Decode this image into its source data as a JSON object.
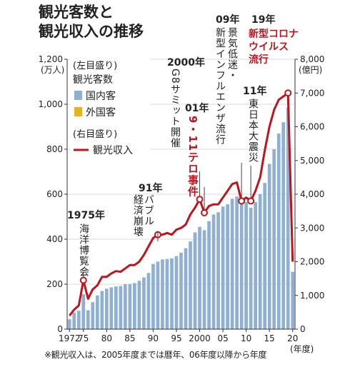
{
  "title": [
    "観光客数と",
    "観光収入の推移"
  ],
  "footnote": "※観光収入は、2005年度までは暦年、06年度以降から年度",
  "left_axis": {
    "unit": "(万人)",
    "ticks": [
      "0",
      "200",
      "400",
      "600",
      "800",
      "1,000",
      "1,200"
    ]
  },
  "right_axis": {
    "unit": "(億円)",
    "ticks": [
      "0",
      "1,000",
      "2,000",
      "3,000",
      "4,000",
      "5,000",
      "6,000",
      "7,000",
      "8,000"
    ]
  },
  "x_axis": {
    "unit": "(年度)",
    "ticks": [
      "1972",
      "75",
      "80",
      "85",
      "90",
      "95",
      "2000",
      "05",
      "10",
      "15",
      "20"
    ]
  },
  "legend": {
    "left_header": "(左目盛り)",
    "left_title": "観光客数",
    "domestic": "国内客",
    "foreign": "外国客",
    "right_header": "(右目盛り)",
    "revenue": "観光収入"
  },
  "annotations": [
    {
      "year": "1975年",
      "text": "海洋博覧会",
      "highlight": ""
    },
    {
      "year": "91年",
      "text": "バブル経済崩壊",
      "highlight": ""
    },
    {
      "year": "2000年",
      "text": "G8サミット開催",
      "highlight": ""
    },
    {
      "year": "01年",
      "text": "",
      "highlight": "9・11テロ事件"
    },
    {
      "year": "09年",
      "text": "景気低迷・新型インフルエンザ流行",
      "highlight": ""
    },
    {
      "year": "11年",
      "text": "東日本大震災",
      "highlight": ""
    },
    {
      "year": "19年",
      "text": "",
      "highlight": "新型コロナウイルス流行"
    }
  ],
  "colors": {
    "domestic": "#8fb0d2",
    "foreign": "#e6b226",
    "revenue": "#c0141d",
    "highlight": "#c0141d",
    "gridline": "#cfcfcf"
  },
  "chart_data": {
    "type": "bar",
    "stacked": true,
    "x": [
      1972,
      1973,
      1974,
      1975,
      1976,
      1977,
      1978,
      1979,
      1980,
      1981,
      1982,
      1983,
      1984,
      1985,
      1986,
      1987,
      1988,
      1989,
      1990,
      1991,
      1992,
      1993,
      1994,
      1995,
      1996,
      1997,
      1998,
      1999,
      2000,
      2001,
      2002,
      2003,
      2004,
      2005,
      2006,
      2007,
      2008,
      2009,
      2010,
      2011,
      2012,
      2013,
      2014,
      2015,
      2016,
      2017,
      2018,
      2019,
      2020
    ],
    "series": [
      {
        "name": "国内客",
        "type": "bar",
        "axis": "left",
        "values": [
          44,
          74,
          82,
          155,
          84,
          120,
          150,
          170,
          180,
          186,
          190,
          192,
          200,
          200,
          205,
          215,
          230,
          250,
          290,
          300,
          310,
          312,
          315,
          325,
          340,
          360,
          390,
          430,
          455,
          440,
          480,
          510,
          520,
          545,
          555,
          580,
          590,
          560,
          565,
          540,
          565,
          600,
          650,
          735,
          800,
          870,
          920,
          985,
          255
        ]
      },
      {
        "name": "外国客",
        "type": "bar",
        "axis": "left",
        "values": [
          0,
          0,
          0,
          0,
          0,
          0,
          0,
          0,
          0,
          0,
          0,
          0,
          0,
          0,
          0,
          0,
          0,
          0,
          0,
          0,
          0,
          0,
          0,
          0,
          0,
          0,
          0,
          0,
          0,
          0,
          0,
          0,
          0,
          0,
          0,
          0,
          0,
          0,
          0,
          0,
          0,
          0,
          0,
          0,
          0,
          0,
          0,
          0,
          0
        ]
      },
      {
        "name": "観光収入",
        "type": "line",
        "axis": "right",
        "values": [
          400,
          580,
          700,
          1450,
          900,
          1180,
          1300,
          1550,
          1550,
          1650,
          1720,
          1700,
          1800,
          1900,
          1900,
          2000,
          2200,
          2450,
          2700,
          2800,
          2800,
          2850,
          2800,
          2950,
          3000,
          3100,
          3400,
          3600,
          3850,
          3450,
          3650,
          3700,
          3700,
          3900,
          4100,
          4300,
          4350,
          3800,
          3900,
          3800,
          4100,
          4500,
          5300,
          6000,
          6500,
          6800,
          6900,
          7000,
          2000
        ]
      }
    ],
    "ylim_left": [
      0,
      1200
    ],
    "ylim_right": [
      0,
      8000
    ],
    "xlabel": "(年度)",
    "ylabel_left": "(万人)",
    "ylabel_right": "(億円)",
    "legend_position": "top-left",
    "grid": true
  }
}
